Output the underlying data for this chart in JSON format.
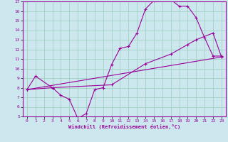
{
  "title": "",
  "xlabel": "Windchill (Refroidissement éolien,°C)",
  "bg_color": "#cce8ee",
  "line_color": "#990099",
  "grid_color": "#99ccbb",
  "xlim": [
    -0.5,
    23.5
  ],
  "ylim": [
    5,
    17
  ],
  "xticks": [
    0,
    1,
    2,
    3,
    4,
    5,
    6,
    7,
    8,
    9,
    10,
    11,
    12,
    13,
    14,
    15,
    16,
    17,
    18,
    19,
    20,
    21,
    22,
    23
  ],
  "yticks": [
    5,
    6,
    7,
    8,
    9,
    10,
    11,
    12,
    13,
    14,
    15,
    16,
    17
  ],
  "line1_x": [
    0,
    1,
    3,
    4,
    5,
    6,
    7,
    8,
    9,
    10,
    11,
    12,
    13,
    14,
    15,
    16,
    17,
    18,
    19,
    20,
    21,
    22,
    23
  ],
  "line1_y": [
    7.8,
    9.2,
    8.0,
    7.2,
    6.8,
    4.8,
    5.3,
    7.8,
    8.0,
    10.4,
    12.1,
    12.3,
    13.7,
    16.2,
    17.1,
    17.2,
    17.2,
    16.5,
    16.5,
    15.3,
    13.2,
    11.3,
    11.3
  ],
  "line2_x": [
    0,
    3,
    10,
    14,
    17,
    19,
    20,
    22,
    23
  ],
  "line2_y": [
    7.8,
    8.0,
    8.3,
    10.5,
    11.5,
    12.5,
    13.0,
    13.7,
    11.2
  ],
  "line3_x": [
    0,
    23
  ],
  "line3_y": [
    7.8,
    11.2
  ],
  "marker": "+"
}
